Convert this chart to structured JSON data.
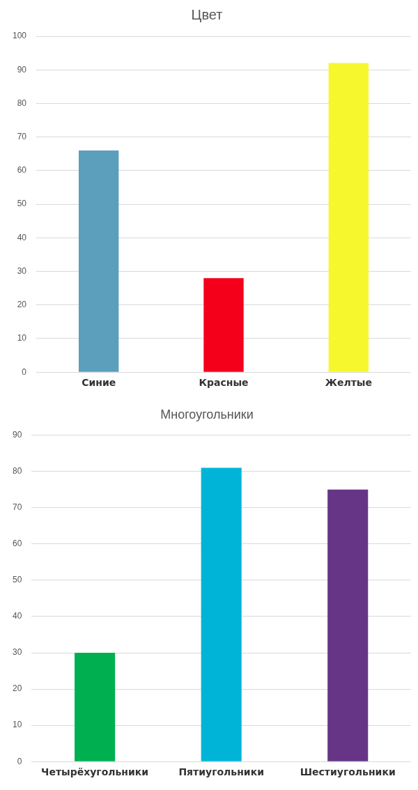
{
  "chart_data": [
    {
      "type": "bar",
      "title": "Цвет",
      "categories": [
        "Синие",
        "Красные",
        "Желтые"
      ],
      "values": [
        66,
        28,
        92
      ],
      "colors": [
        "#5b9fbd",
        "#f5001a",
        "#f7f72e"
      ],
      "ylim": [
        0,
        100
      ],
      "yticks": [
        0,
        10,
        20,
        30,
        40,
        50,
        60,
        70,
        80,
        90,
        100
      ],
      "grid": "y",
      "legend": false
    },
    {
      "type": "bar",
      "title": "Многоугольники",
      "categories": [
        "Четырёхугольники",
        "Пятиугольники",
        "Шестиугольники"
      ],
      "values": [
        30,
        81,
        75
      ],
      "colors": [
        "#00b050",
        "#00b4d8",
        "#673585"
      ],
      "ylim": [
        0,
        90
      ],
      "yticks": [
        0,
        10,
        20,
        30,
        40,
        50,
        60,
        70,
        80,
        90
      ],
      "grid": "y",
      "legend": false
    }
  ]
}
